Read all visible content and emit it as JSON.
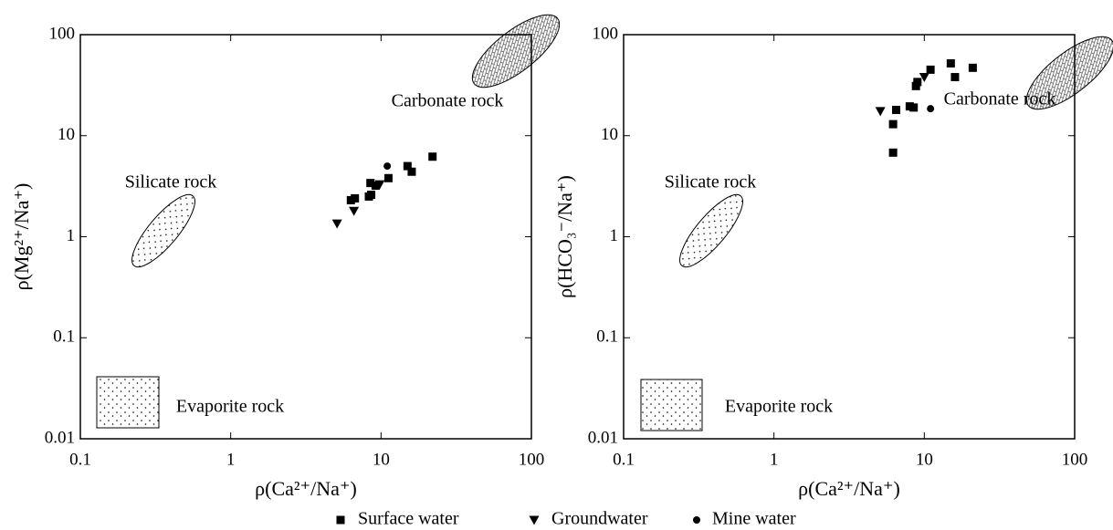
{
  "chart_data": [
    {
      "type": "scatter",
      "xlabel": "ρ(Ca²⁺/Na⁺)",
      "ylabel": "ρ(Mg²⁺/Na⁺)",
      "xscale": "log",
      "yscale": "log",
      "xlim": [
        0.1,
        100
      ],
      "ylim": [
        0.01,
        100
      ],
      "xticks": [
        0.1,
        1,
        10,
        100
      ],
      "yticks": [
        0.01,
        0.1,
        1,
        10,
        100
      ],
      "annotations": [
        "Carbonate rock",
        "Silicate rock",
        "Evaporite rock"
      ],
      "series": [
        {
          "name": "Surface water",
          "marker": "square",
          "color": "#000000",
          "x": [
            6.3,
            6.7,
            8.3,
            8.6,
            8.5,
            9.2,
            11.2,
            15,
            16,
            22
          ],
          "values": [
            2.3,
            2.4,
            2.5,
            2.6,
            3.4,
            3.2,
            3.8,
            5.0,
            4.4,
            6.2
          ]
        },
        {
          "name": "Groundwater",
          "marker": "triangle-down",
          "color": "#000000",
          "x": [
            5.1,
            6.6,
            9.8
          ],
          "values": [
            1.35,
            1.8,
            3.3
          ]
        },
        {
          "name": "Mine water",
          "marker": "circle",
          "color": "#000000",
          "x": [
            11
          ],
          "values": [
            5.0
          ]
        }
      ]
    },
    {
      "type": "scatter",
      "xlabel": "ρ(Ca²⁺/Na⁺)",
      "ylabel": "ρ(HCO₃⁻/Na⁺)",
      "xscale": "log",
      "yscale": "log",
      "xlim": [
        0.1,
        100
      ],
      "ylim": [
        0.01,
        100
      ],
      "xticks": [
        0.1,
        1,
        10,
        100
      ],
      "yticks": [
        0.01,
        0.1,
        1,
        10,
        100
      ],
      "annotations": [
        "Carbonate rock",
        "Silicate rock",
        "Evaporite rock"
      ],
      "series": [
        {
          "marker": "square",
          "color": "#000000",
          "x": [
            6.2,
            6.2,
            6.5,
            8,
            8.5,
            8.8,
            9,
            11,
            15,
            16,
            21
          ],
          "values": [
            6.8,
            13,
            18,
            19.5,
            19,
            31,
            34,
            45,
            52,
            38,
            47
          ]
        },
        {
          "marker": "triangle-down",
          "color": "#000000",
          "x": [
            5.1,
            10
          ],
          "values": [
            17.5,
            38
          ]
        },
        {
          "marker": "circle",
          "color": "#000000",
          "x": [
            11
          ],
          "values": [
            18.5
          ]
        }
      ]
    }
  ]
}
